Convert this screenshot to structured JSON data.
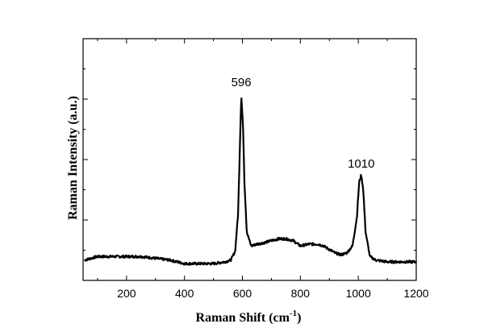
{
  "chart_data": {
    "type": "line",
    "xlabel": "Raman Shift (cm",
    "xlabel_superscript": "-1",
    "xlabel_suffix": ")",
    "ylabel": "Raman Intensity (a.u.)",
    "xlim": [
      50,
      1200
    ],
    "ylim": [
      0,
      100
    ],
    "x_ticks": [
      200,
      400,
      600,
      800,
      1000,
      1200
    ],
    "y_ticks_labeled": false,
    "grid": false,
    "line_color": "#000000",
    "annotations": [
      {
        "text": "596",
        "x": 596,
        "y": 100
      },
      {
        "text": "1010",
        "x": 1010,
        "y": 54
      }
    ],
    "series": [
      {
        "x": [
          55,
          100,
          150,
          200,
          250,
          300,
          350,
          400,
          450,
          500,
          540,
          560,
          575,
          585,
          590,
          596,
          602,
          607,
          615,
          630,
          650,
          680,
          700,
          725,
          750,
          775,
          800,
          830,
          860,
          880,
          900,
          920,
          940,
          960,
          980,
          995,
          1003,
          1010,
          1017,
          1025,
          1040,
          1060,
          1100,
          1150,
          1200
        ],
        "y": [
          6,
          8,
          8,
          8,
          8,
          7,
          6,
          4,
          4,
          4,
          5,
          6,
          11,
          32,
          62,
          99,
          82,
          50,
          22,
          14,
          15,
          16,
          17,
          18,
          18,
          17,
          14,
          15,
          15,
          14,
          12,
          10,
          9,
          10,
          14,
          30,
          50,
          54,
          46,
          22,
          8,
          6,
          5,
          5,
          5
        ]
      }
    ]
  }
}
